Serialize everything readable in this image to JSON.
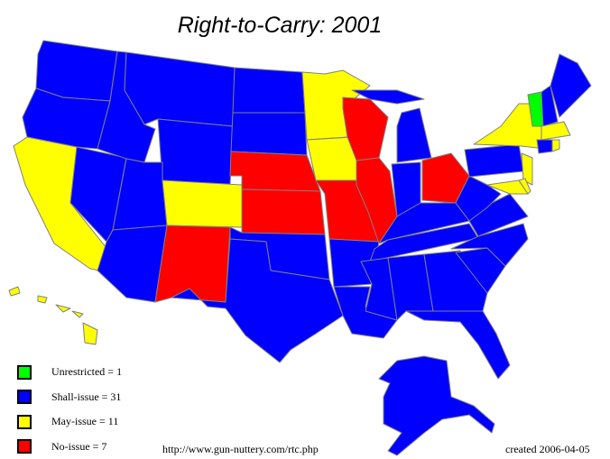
{
  "title": "Right-to-Carry: 2001",
  "colors": {
    "unrestricted": "#00ff00",
    "shall_issue": "#0000ff",
    "may_issue": "#ffff00",
    "no_issue": "#ff0000",
    "border": "#808080"
  },
  "legend": [
    {
      "label": "Unrestricted = 1",
      "key": "unrestricted"
    },
    {
      "label": "Shall-issue = 31",
      "key": "shall_issue"
    },
    {
      "label": "May-issue = 11",
      "key": "may_issue"
    },
    {
      "label": "No-issue = 7",
      "key": "no_issue"
    }
  ],
  "states": {
    "WA": "shall_issue",
    "OR": "shall_issue",
    "CA": "may_issue",
    "NV": "shall_issue",
    "ID": "shall_issue",
    "MT": "shall_issue",
    "WY": "shall_issue",
    "UT": "shall_issue",
    "AZ": "shall_issue",
    "CO": "may_issue",
    "NM": "no_issue",
    "ND": "shall_issue",
    "SD": "shall_issue",
    "NE": "no_issue",
    "KS": "no_issue",
    "OK": "shall_issue",
    "TX": "shall_issue",
    "MN": "may_issue",
    "IA": "may_issue",
    "MO": "no_issue",
    "AR": "shall_issue",
    "LA": "shall_issue",
    "WI": "no_issue",
    "IL": "no_issue",
    "MI": "shall_issue",
    "IN": "shall_issue",
    "OH": "no_issue",
    "KY": "shall_issue",
    "TN": "shall_issue",
    "MS": "shall_issue",
    "AL": "shall_issue",
    "GA": "shall_issue",
    "FL": "shall_issue",
    "SC": "shall_issue",
    "NC": "shall_issue",
    "VA": "shall_issue",
    "WV": "shall_issue",
    "PA": "shall_issue",
    "NY": "may_issue",
    "NJ": "may_issue",
    "MD": "may_issue",
    "DE": "may_issue",
    "VT": "unrestricted",
    "NH": "shall_issue",
    "ME": "shall_issue",
    "MA": "may_issue",
    "CT": "shall_issue",
    "RI": "may_issue",
    "AK": "shall_issue",
    "HI": "may_issue"
  },
  "footer": {
    "url": "http://www.gun-nuttery.com/rtc.php",
    "created": "created 2006-04-05"
  }
}
